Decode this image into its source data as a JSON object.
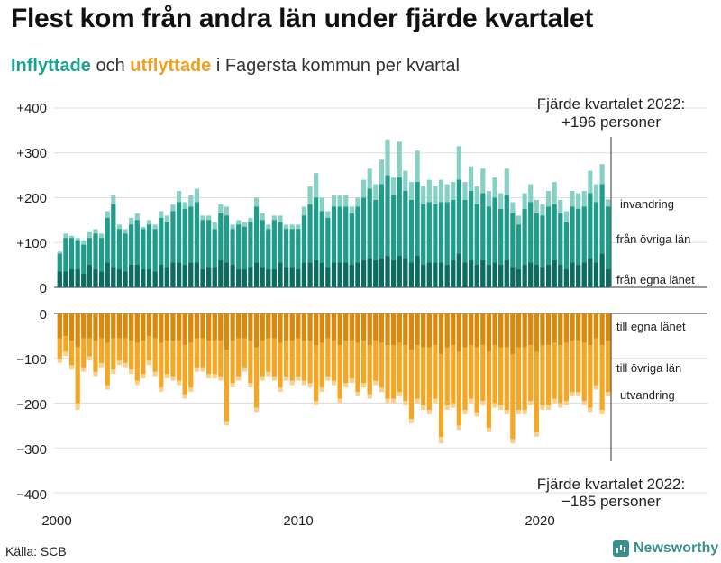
{
  "title": "Flest kom från andra län under fjärde kvartalet",
  "subtitle": {
    "in_word": "Inflyttade",
    "and_word": "och",
    "out_word": "utflyttade",
    "rest": "i Fagersta kommun per kvartal"
  },
  "source": "Källa: SCB",
  "brand": "Newsworthy",
  "colors": {
    "in_dark": "#0e6b60",
    "in_mid": "#1f9c8a",
    "in_light": "#86d0c5",
    "out_dark": "#d98a0e",
    "out_mid": "#f5a623",
    "out_light": "#f9d08e"
  },
  "chart_data": {
    "type": "bar",
    "stacked": true,
    "diverging": true,
    "x_start": "2000 Q1",
    "x_end": "2022 Q4",
    "x_ticks": [
      "2000",
      "2010",
      "2020"
    ],
    "y_ticks": [
      "+400",
      "+300",
      "+200",
      "+100",
      "0",
      "0",
      "−100",
      "−200",
      "−300",
      "−400"
    ],
    "ylim_in": [
      0,
      400
    ],
    "ylim_out": [
      -400,
      0
    ],
    "annotation_top": {
      "line1": "Fjärde kvartalet 2022:",
      "line2": "+196 personer"
    },
    "annotation_bottom": {
      "line1": "Fjärde kvartalet 2022:",
      "line2": "−185 personer"
    },
    "series_labels": {
      "in_total": "invandring",
      "in_other": "från övriga län",
      "in_own": "från egna länet",
      "out_own": "till egna länet",
      "out_other": "till övriga län",
      "out_total": "utvandring"
    },
    "in_total": [
      80,
      120,
      115,
      110,
      105,
      125,
      130,
      120,
      170,
      205,
      140,
      130,
      155,
      165,
      135,
      150,
      140,
      170,
      160,
      185,
      215,
      190,
      205,
      220,
      160,
      160,
      145,
      185,
      180,
      140,
      150,
      145,
      155,
      200,
      165,
      140,
      160,
      160,
      140,
      140,
      140,
      180,
      225,
      255,
      200,
      170,
      205,
      205,
      205,
      180,
      200,
      240,
      265,
      230,
      285,
      330,
      245,
      325,
      260,
      235,
      305,
      225,
      240,
      225,
      240,
      230,
      235,
      315,
      235,
      270,
      225,
      265,
      215,
      245,
      210,
      265,
      190,
      160,
      210,
      230,
      195,
      185,
      215,
      235,
      195,
      170,
      215,
      210,
      215,
      260,
      230,
      275,
      196
    ],
    "in_own": [
      35,
      35,
      40,
      40,
      30,
      50,
      40,
      35,
      55,
      45,
      40,
      35,
      50,
      50,
      40,
      40,
      35,
      50,
      45,
      55,
      55,
      50,
      55,
      55,
      40,
      45,
      45,
      60,
      55,
      50,
      40,
      40,
      45,
      55,
      45,
      40,
      40,
      55,
      45,
      45,
      40,
      55,
      55,
      60,
      55,
      45,
      55,
      55,
      55,
      50,
      55,
      60,
      65,
      60,
      65,
      70,
      60,
      70,
      65,
      55,
      70,
      50,
      55,
      55,
      55,
      50,
      60,
      75,
      55,
      60,
      50,
      60,
      50,
      55,
      50,
      60,
      45,
      40,
      50,
      55,
      50,
      45,
      50,
      60,
      50,
      40,
      55,
      50,
      55,
      65,
      55,
      75,
      40
    ],
    "in_other": [
      75,
      110,
      110,
      105,
      95,
      110,
      120,
      110,
      155,
      185,
      130,
      120,
      140,
      150,
      130,
      140,
      130,
      155,
      145,
      170,
      190,
      175,
      180,
      190,
      150,
      150,
      130,
      165,
      160,
      130,
      140,
      135,
      145,
      180,
      150,
      130,
      150,
      145,
      130,
      130,
      130,
      160,
      185,
      200,
      170,
      155,
      180,
      180,
      180,
      165,
      180,
      200,
      220,
      195,
      230,
      250,
      205,
      245,
      215,
      195,
      235,
      185,
      190,
      185,
      190,
      190,
      195,
      240,
      195,
      215,
      185,
      210,
      180,
      200,
      175,
      205,
      165,
      140,
      175,
      190,
      165,
      160,
      180,
      185,
      165,
      145,
      180,
      175,
      180,
      210,
      190,
      230,
      180
    ],
    "out_total": [
      -110,
      -95,
      -125,
      -215,
      -130,
      -105,
      -140,
      -120,
      -170,
      -135,
      -115,
      -120,
      -135,
      -160,
      -145,
      -115,
      -140,
      -175,
      -145,
      -150,
      -160,
      -190,
      -175,
      -130,
      -130,
      -145,
      -145,
      -150,
      -250,
      -165,
      -150,
      -130,
      -165,
      -220,
      -150,
      -140,
      -150,
      -175,
      -150,
      -160,
      -150,
      -160,
      -165,
      -205,
      -175,
      -150,
      -160,
      -200,
      -165,
      -155,
      -185,
      -165,
      -190,
      -160,
      -175,
      -200,
      -200,
      -185,
      -205,
      -245,
      -200,
      -215,
      -225,
      -200,
      -290,
      -215,
      -210,
      -260,
      -225,
      -200,
      -230,
      -205,
      -265,
      -210,
      -215,
      -225,
      -290,
      -225,
      -225,
      -205,
      -275,
      -215,
      -215,
      -200,
      -210,
      -205,
      -185,
      -185,
      -205,
      -220,
      -170,
      -225,
      -185
    ],
    "out_own": [
      -55,
      -50,
      -60,
      -75,
      -55,
      -55,
      -60,
      -55,
      -65,
      -55,
      -55,
      -55,
      -60,
      -65,
      -60,
      -50,
      -55,
      -65,
      -60,
      -60,
      -60,
      -70,
      -65,
      -55,
      -55,
      -60,
      -60,
      -60,
      -80,
      -60,
      -55,
      -55,
      -60,
      -75,
      -60,
      -55,
      -55,
      -65,
      -60,
      -60,
      -55,
      -60,
      -60,
      -70,
      -65,
      -55,
      -60,
      -70,
      -60,
      -60,
      -65,
      -60,
      -70,
      -60,
      -65,
      -70,
      -70,
      -65,
      -70,
      -80,
      -70,
      -75,
      -75,
      -70,
      -90,
      -75,
      -70,
      -85,
      -75,
      -70,
      -75,
      -70,
      -85,
      -70,
      -75,
      -75,
      -90,
      -75,
      -75,
      -70,
      -85,
      -70,
      -70,
      -65,
      -70,
      -65,
      -60,
      -60,
      -65,
      -70,
      -55,
      -70,
      -60
    ],
    "out_other": [
      -100,
      -85,
      -115,
      -200,
      -120,
      -95,
      -130,
      -110,
      -160,
      -125,
      -105,
      -110,
      -125,
      -150,
      -135,
      -105,
      -130,
      -165,
      -135,
      -140,
      -150,
      -180,
      -165,
      -120,
      -120,
      -135,
      -135,
      -140,
      -240,
      -155,
      -140,
      -120,
      -155,
      -210,
      -140,
      -130,
      -140,
      -165,
      -140,
      -150,
      -140,
      -150,
      -155,
      -195,
      -165,
      -140,
      -150,
      -190,
      -155,
      -145,
      -175,
      -155,
      -180,
      -150,
      -165,
      -190,
      -190,
      -175,
      -195,
      -235,
      -190,
      -205,
      -215,
      -190,
      -275,
      -205,
      -200,
      -250,
      -215,
      -190,
      -220,
      -195,
      -255,
      -200,
      -205,
      -215,
      -280,
      -215,
      -215,
      -195,
      -265,
      -205,
      -205,
      -190,
      -200,
      -195,
      -175,
      -175,
      -195,
      -210,
      -160,
      -215,
      -175
    ]
  }
}
